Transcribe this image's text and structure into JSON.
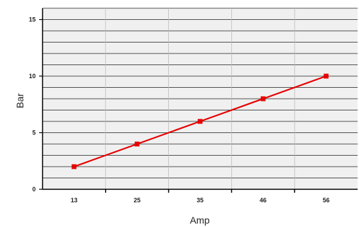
{
  "chart_data": {
    "type": "line",
    "title": "",
    "xlabel": "Amp",
    "ylabel": "Bar",
    "categories": [
      "13",
      "25",
      "35",
      "46",
      "56"
    ],
    "series": [
      {
        "values": [
          2,
          4,
          6,
          8,
          10
        ],
        "color": "#e60000"
      }
    ],
    "ylim": [
      0,
      16
    ],
    "yticks": [
      "0",
      "5",
      "10",
      "15"
    ],
    "grid": true,
    "legend": "none",
    "colors": {
      "plot_background": "#f0f0f0",
      "gridline": "#1a1a1a",
      "vertical_gridline": "#bbbbbb"
    }
  }
}
